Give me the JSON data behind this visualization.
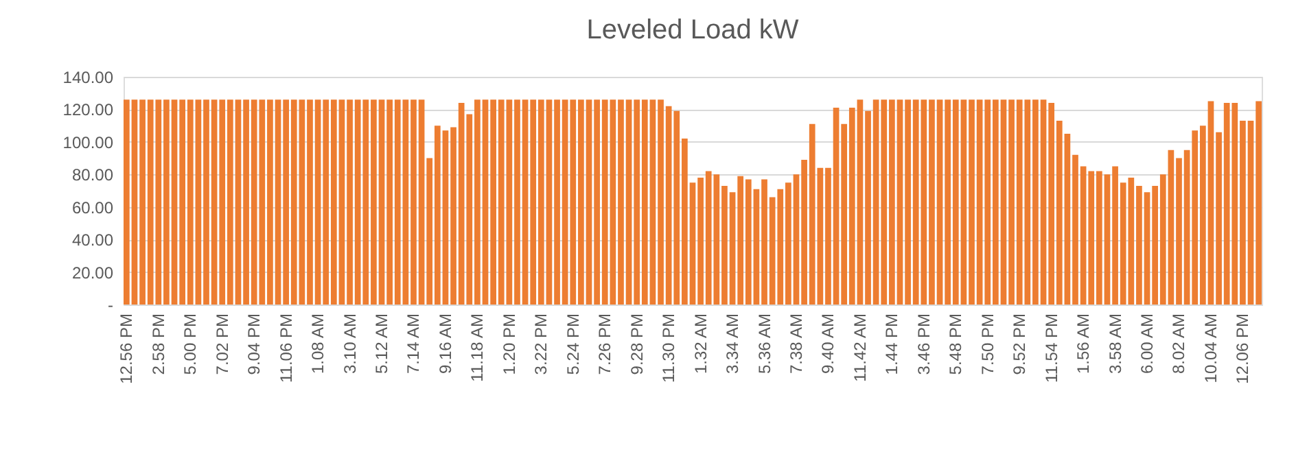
{
  "chart_data": {
    "type": "bar",
    "title": "Leveled Load kW",
    "categories": [
      "12.56 PM",
      null,
      null,
      null,
      "2.58 PM",
      null,
      null,
      null,
      "5.00 PM",
      null,
      null,
      null,
      "7.02 PM",
      null,
      null,
      null,
      "9.04 PM",
      null,
      null,
      null,
      "11.06 PM",
      null,
      null,
      null,
      "1.08 AM",
      null,
      null,
      null,
      "3.10 AM",
      null,
      null,
      null,
      "5.12 AM",
      null,
      null,
      null,
      "7.14 AM",
      null,
      null,
      null,
      "9.16 AM",
      null,
      null,
      null,
      "11.18 AM",
      null,
      null,
      null,
      "1.20 PM",
      null,
      null,
      null,
      "3.22 PM",
      null,
      null,
      null,
      "5.24 PM",
      null,
      null,
      null,
      "7.26 PM",
      null,
      null,
      null,
      "9.28 PM",
      null,
      null,
      null,
      "11.30 PM",
      null,
      null,
      null,
      "1.32 AM",
      null,
      null,
      null,
      "3.34 AM",
      null,
      null,
      null,
      "5.36 AM",
      null,
      null,
      null,
      "7.38 AM",
      null,
      null,
      null,
      "9.40 AM",
      null,
      null,
      null,
      "11.42 AM",
      null,
      null,
      null,
      "1.44 PM",
      null,
      null,
      null,
      "3.46 PM",
      null,
      null,
      null,
      "5.48 PM",
      null,
      null,
      null,
      "7.50 PM",
      null,
      null,
      null,
      "9.52 PM",
      null,
      null,
      null,
      "11.54 PM",
      null,
      null,
      null,
      "1.56 AM",
      null,
      null,
      null,
      "3.58 AM",
      null,
      null,
      null,
      "6.00 AM",
      null,
      null,
      null,
      "8.02 AM",
      null,
      null,
      null,
      "10.04 AM",
      null,
      null,
      null,
      "12.06 PM",
      null,
      null
    ],
    "values": [
      126,
      126,
      126,
      126,
      126,
      126,
      126,
      126,
      126,
      126,
      126,
      126,
      126,
      126,
      126,
      126,
      126,
      126,
      126,
      126,
      126,
      126,
      126,
      126,
      126,
      126,
      126,
      126,
      126,
      126,
      126,
      126,
      126,
      126,
      126,
      126,
      126,
      126,
      90,
      110,
      107,
      109,
      124,
      117,
      126,
      126,
      126,
      126,
      126,
      126,
      126,
      126,
      126,
      126,
      126,
      126,
      126,
      126,
      126,
      126,
      126,
      126,
      126,
      126,
      126,
      126,
      126,
      126,
      122,
      119,
      102,
      75,
      78,
      82,
      80,
      73,
      69,
      79,
      77,
      71,
      77,
      66,
      71,
      75,
      80,
      89,
      111,
      84,
      84,
      121,
      111,
      121,
      126,
      119,
      126,
      126,
      126,
      126,
      126,
      126,
      126,
      126,
      126,
      126,
      126,
      126,
      126,
      126,
      126,
      126,
      126,
      126,
      126,
      126,
      126,
      126,
      124,
      113,
      105,
      92,
      85,
      82,
      82,
      80,
      85,
      75,
      78,
      73,
      69,
      73,
      80,
      95,
      90,
      95,
      107,
      110,
      125,
      106,
      124,
      124,
      113,
      113,
      125
    ],
    "color": "#ed7d31",
    "ylim": [
      0,
      140
    ],
    "yticks": [
      {
        "value": 0,
        "label": "-"
      },
      {
        "value": 20,
        "label": "20.00"
      },
      {
        "value": 40,
        "label": "40.00"
      },
      {
        "value": 60,
        "label": "60.00"
      },
      {
        "value": 80,
        "label": "80.00"
      },
      {
        "value": 100,
        "label": "100.00"
      },
      {
        "value": 120,
        "label": "120.00"
      },
      {
        "value": 140,
        "label": "140.00"
      }
    ],
    "grid": "y"
  }
}
